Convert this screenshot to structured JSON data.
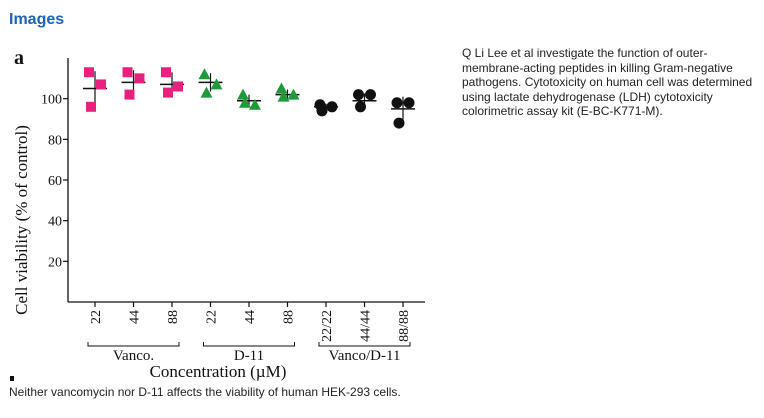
{
  "section_title": "Images",
  "figure": {
    "panel_label": "a",
    "caption": "Neither vancomycin nor D-11 affects the viability of human HEK-293 cells."
  },
  "description": "Q Li Lee et al investigate the function of outer-membrane-acting peptides in killing Gram-negative pathogens. Cytotoxicity on human cell was determined using lactate dehydrogenase (LDH) cytotoxicity colorimetric assay kit (E-BC-K771-M).",
  "chart_data": {
    "type": "scatter",
    "ylabel": "Cell viability (% of control)",
    "xlabel": "Concentration (µM)",
    "ylim": [
      0,
      120
    ],
    "yticks": [
      20,
      40,
      60,
      80,
      100
    ],
    "categories": [
      "22",
      "44",
      "88",
      "22",
      "44",
      "88",
      "22/22",
      "44/44",
      "88/88"
    ],
    "groups": [
      {
        "name": "Vanco.",
        "categories": [
          0,
          1,
          2
        ],
        "color": "#e8217f",
        "marker": "square"
      },
      {
        "name": "D-11",
        "categories": [
          3,
          4,
          5
        ],
        "color": "#1f9a3a",
        "marker": "triangle"
      },
      {
        "name": "Vanco/D-11",
        "categories": [
          6,
          7,
          8
        ],
        "color": "#111111",
        "marker": "circle"
      }
    ],
    "points": [
      {
        "cat": 0,
        "values": [
          113,
          107,
          96
        ],
        "mean": 105,
        "sd": 8.5
      },
      {
        "cat": 1,
        "values": [
          113,
          110,
          102
        ],
        "mean": 108,
        "sd": 6
      },
      {
        "cat": 2,
        "values": [
          113,
          106,
          103
        ],
        "mean": 107,
        "sd": 6
      },
      {
        "cat": 3,
        "values": [
          112,
          107,
          103
        ],
        "mean": 108,
        "sd": 4.5
      },
      {
        "cat": 4,
        "values": [
          102,
          97,
          98
        ],
        "mean": 99,
        "sd": 3
      },
      {
        "cat": 5,
        "values": [
          105,
          102,
          101
        ],
        "mean": 102,
        "sd": 2.5
      },
      {
        "cat": 6,
        "values": [
          97,
          96,
          94
        ],
        "mean": 96,
        "sd": 1.5
      },
      {
        "cat": 7,
        "values": [
          102,
          102,
          96
        ],
        "mean": 99,
        "sd": 3.5
      },
      {
        "cat": 8,
        "values": [
          98,
          98,
          88
        ],
        "mean": 95,
        "sd": 6
      }
    ]
  }
}
